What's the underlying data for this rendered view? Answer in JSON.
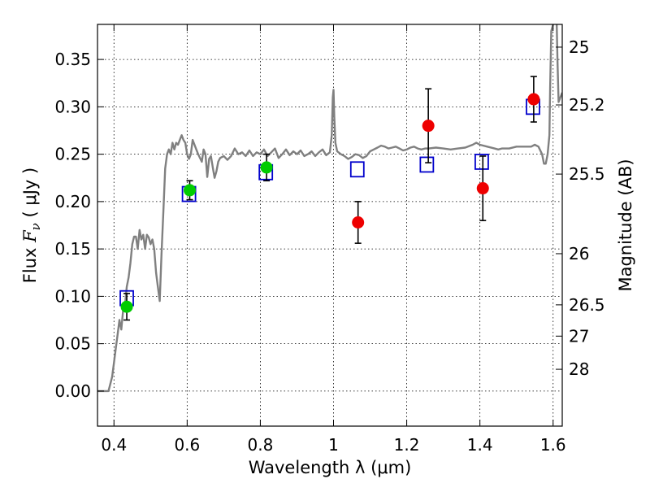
{
  "chart_data": {
    "type": "scatter",
    "xlabel": "Wavelength  λ (μm)",
    "ylabel_main": "Flux  ",
    "ylabel_symbol": "F",
    "ylabel_subscript": "ν",
    "ylabel_units": " ( μJy )",
    "ylabel_right": "Magnitude (AB)",
    "xlim": [
      0.355,
      1.625
    ],
    "ylim": [
      -0.037,
      0.387
    ],
    "grid": true,
    "x_ticks": [
      {
        "value": 0.4,
        "label": "0.4"
      },
      {
        "value": 0.6,
        "label": "0.6"
      },
      {
        "value": 0.8,
        "label": "0.8"
      },
      {
        "value": 1.0,
        "label": "1"
      },
      {
        "value": 1.2,
        "label": "1.2"
      },
      {
        "value": 1.4,
        "label": "1.4"
      },
      {
        "value": 1.6,
        "label": "1.6"
      }
    ],
    "y_ticks": [
      {
        "value": 0.0,
        "label": "0.00"
      },
      {
        "value": 0.05,
        "label": "0.05"
      },
      {
        "value": 0.1,
        "label": "0.10"
      },
      {
        "value": 0.15,
        "label": "0.15"
      },
      {
        "value": 0.2,
        "label": "0.20"
      },
      {
        "value": 0.25,
        "label": "0.25"
      },
      {
        "value": 0.3,
        "label": "0.30"
      },
      {
        "value": 0.35,
        "label": "0.35"
      }
    ],
    "right_ticks": [
      {
        "label": "25",
        "flux": 0.363
      },
      {
        "label": "25.2",
        "flux": 0.302
      },
      {
        "label": "25.5",
        "flux": 0.229
      },
      {
        "label": "26",
        "flux": 0.145
      },
      {
        "label": "26.5",
        "flux": 0.091
      },
      {
        "label": "27",
        "flux": 0.058
      },
      {
        "label": "28",
        "flux": 0.023
      }
    ],
    "colors": {
      "model": "#808080",
      "box": "#0000cc",
      "green": "#00cc00",
      "red": "#ee0000",
      "errorbar": "#000000"
    },
    "series": [
      {
        "kind": "line",
        "points": [
          [
            0.355,
            0.0
          ],
          [
            0.385,
            0.0
          ],
          [
            0.395,
            0.015
          ],
          [
            0.4,
            0.03
          ],
          [
            0.405,
            0.045
          ],
          [
            0.41,
            0.06
          ],
          [
            0.415,
            0.075
          ],
          [
            0.42,
            0.065
          ],
          [
            0.425,
            0.085
          ],
          [
            0.43,
            0.09
          ],
          [
            0.435,
            0.11
          ],
          [
            0.44,
            0.12
          ],
          [
            0.445,
            0.135
          ],
          [
            0.45,
            0.155
          ],
          [
            0.455,
            0.163
          ],
          [
            0.46,
            0.163
          ],
          [
            0.465,
            0.15
          ],
          [
            0.47,
            0.17
          ],
          [
            0.475,
            0.16
          ],
          [
            0.48,
            0.165
          ],
          [
            0.485,
            0.15
          ],
          [
            0.49,
            0.165
          ],
          [
            0.495,
            0.162
          ],
          [
            0.5,
            0.155
          ],
          [
            0.505,
            0.16
          ],
          [
            0.51,
            0.15
          ],
          [
            0.515,
            0.125
          ],
          [
            0.52,
            0.11
          ],
          [
            0.525,
            0.095
          ],
          [
            0.53,
            0.145
          ],
          [
            0.535,
            0.19
          ],
          [
            0.54,
            0.235
          ],
          [
            0.545,
            0.25
          ],
          [
            0.55,
            0.255
          ],
          [
            0.555,
            0.25
          ],
          [
            0.56,
            0.262
          ],
          [
            0.565,
            0.255
          ],
          [
            0.57,
            0.262
          ],
          [
            0.575,
            0.26
          ],
          [
            0.58,
            0.265
          ],
          [
            0.585,
            0.27
          ],
          [
            0.59,
            0.265
          ],
          [
            0.595,
            0.262
          ],
          [
            0.6,
            0.25
          ],
          [
            0.605,
            0.245
          ],
          [
            0.61,
            0.25
          ],
          [
            0.615,
            0.265
          ],
          [
            0.62,
            0.26
          ],
          [
            0.625,
            0.255
          ],
          [
            0.63,
            0.25
          ],
          [
            0.64,
            0.242
          ],
          [
            0.645,
            0.255
          ],
          [
            0.65,
            0.25
          ],
          [
            0.655,
            0.226
          ],
          [
            0.66,
            0.245
          ],
          [
            0.665,
            0.248
          ],
          [
            0.67,
            0.236
          ],
          [
            0.675,
            0.225
          ],
          [
            0.68,
            0.232
          ],
          [
            0.685,
            0.242
          ],
          [
            0.69,
            0.246
          ],
          [
            0.7,
            0.248
          ],
          [
            0.71,
            0.244
          ],
          [
            0.72,
            0.248
          ],
          [
            0.73,
            0.256
          ],
          [
            0.74,
            0.25
          ],
          [
            0.75,
            0.252
          ],
          [
            0.76,
            0.248
          ],
          [
            0.77,
            0.254
          ],
          [
            0.78,
            0.248
          ],
          [
            0.79,
            0.252
          ],
          [
            0.8,
            0.25
          ],
          [
            0.81,
            0.255
          ],
          [
            0.82,
            0.248
          ],
          [
            0.83,
            0.252
          ],
          [
            0.84,
            0.256
          ],
          [
            0.85,
            0.246
          ],
          [
            0.86,
            0.25
          ],
          [
            0.87,
            0.255
          ],
          [
            0.88,
            0.249
          ],
          [
            0.89,
            0.253
          ],
          [
            0.9,
            0.25
          ],
          [
            0.91,
            0.254
          ],
          [
            0.92,
            0.248
          ],
          [
            0.93,
            0.25
          ],
          [
            0.94,
            0.253
          ],
          [
            0.95,
            0.248
          ],
          [
            0.96,
            0.252
          ],
          [
            0.97,
            0.255
          ],
          [
            0.98,
            0.249
          ],
          [
            0.99,
            0.252
          ],
          [
            0.995,
            0.27
          ],
          [
            0.998,
            0.31
          ],
          [
            1.0,
            0.318
          ],
          [
            1.002,
            0.29
          ],
          [
            1.005,
            0.262
          ],
          [
            1.01,
            0.253
          ],
          [
            1.02,
            0.25
          ],
          [
            1.03,
            0.248
          ],
          [
            1.04,
            0.245
          ],
          [
            1.05,
            0.247
          ],
          [
            1.06,
            0.25
          ],
          [
            1.07,
            0.249
          ],
          [
            1.08,
            0.246
          ],
          [
            1.09,
            0.248
          ],
          [
            1.1,
            0.253
          ],
          [
            1.11,
            0.255
          ],
          [
            1.12,
            0.257
          ],
          [
            1.13,
            0.259
          ],
          [
            1.14,
            0.258
          ],
          [
            1.15,
            0.256
          ],
          [
            1.16,
            0.257
          ],
          [
            1.17,
            0.258
          ],
          [
            1.18,
            0.256
          ],
          [
            1.19,
            0.254
          ],
          [
            1.2,
            0.255
          ],
          [
            1.21,
            0.257
          ],
          [
            1.22,
            0.258
          ],
          [
            1.23,
            0.256
          ],
          [
            1.24,
            0.255
          ],
          [
            1.25,
            0.256
          ],
          [
            1.26,
            0.256
          ],
          [
            1.28,
            0.257
          ],
          [
            1.3,
            0.256
          ],
          [
            1.32,
            0.255
          ],
          [
            1.34,
            0.256
          ],
          [
            1.36,
            0.257
          ],
          [
            1.38,
            0.26
          ],
          [
            1.39,
            0.262
          ],
          [
            1.4,
            0.26
          ],
          [
            1.42,
            0.258
          ],
          [
            1.44,
            0.256
          ],
          [
            1.45,
            0.255
          ],
          [
            1.46,
            0.256
          ],
          [
            1.48,
            0.256
          ],
          [
            1.5,
            0.258
          ],
          [
            1.52,
            0.258
          ],
          [
            1.53,
            0.258
          ],
          [
            1.54,
            0.258
          ],
          [
            1.55,
            0.26
          ],
          [
            1.56,
            0.258
          ],
          [
            1.57,
            0.25
          ],
          [
            1.575,
            0.24
          ],
          [
            1.58,
            0.24
          ],
          [
            1.585,
            0.25
          ],
          [
            1.59,
            0.27
          ],
          [
            1.592,
            0.32
          ],
          [
            1.595,
            0.38
          ],
          [
            1.6,
            0.387
          ]
        ]
      },
      {
        "kind": "line",
        "points": [
          [
            1.61,
            0.387
          ],
          [
            1.612,
            0.35
          ],
          [
            1.615,
            0.305
          ],
          [
            1.62,
            0.31
          ],
          [
            1.625,
            0.315
          ]
        ]
      },
      {
        "kind": "boxes",
        "points": [
          [
            0.435,
            0.098
          ],
          [
            0.605,
            0.208
          ],
          [
            0.815,
            0.231
          ],
          [
            1.065,
            0.234
          ],
          [
            1.255,
            0.239
          ],
          [
            1.405,
            0.242
          ],
          [
            1.545,
            0.3
          ]
        ]
      },
      {
        "kind": "green",
        "points": [
          {
            "x": 0.435,
            "y": 0.089,
            "yerr": 0.014
          },
          {
            "x": 0.607,
            "y": 0.212,
            "yerr": 0.01
          },
          {
            "x": 0.817,
            "y": 0.236,
            "yerr": 0.014
          }
        ]
      },
      {
        "kind": "red",
        "points": [
          {
            "x": 1.067,
            "y": 0.178,
            "yerr": 0.022
          },
          {
            "x": 1.259,
            "y": 0.28,
            "yerr": 0.039
          },
          {
            "x": 1.408,
            "y": 0.214,
            "yerr": 0.034
          },
          {
            "x": 1.547,
            "y": 0.308,
            "yerr": 0.024
          }
        ]
      }
    ]
  }
}
